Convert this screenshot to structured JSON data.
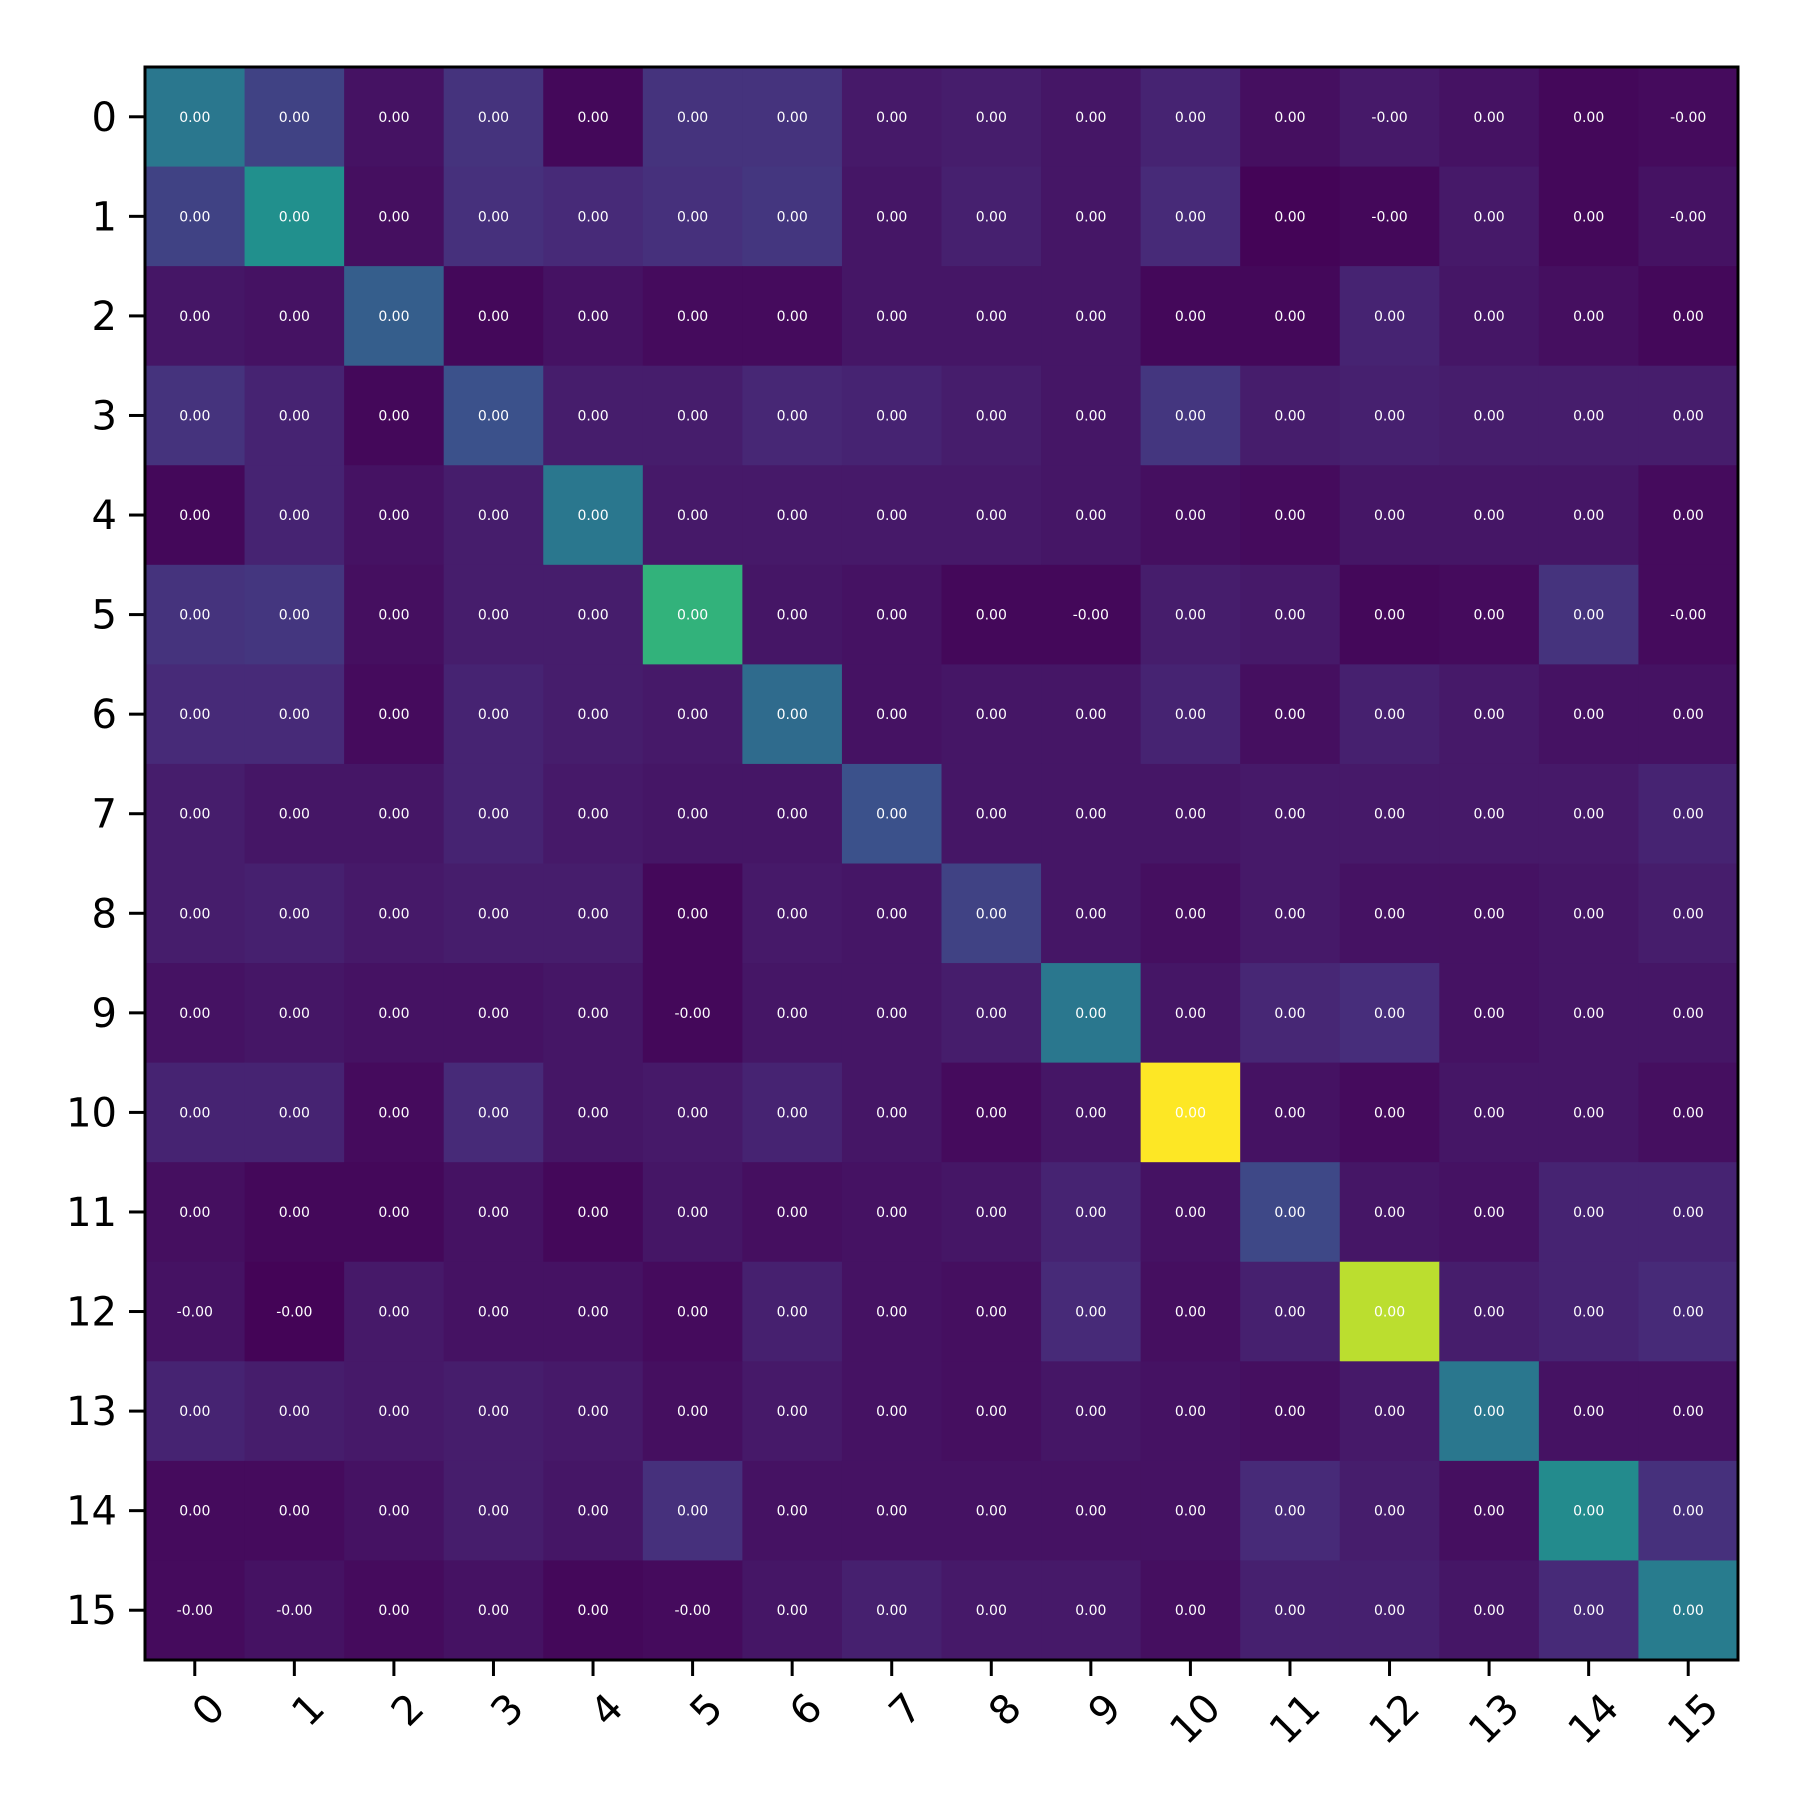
{
  "chart_data": {
    "type": "heatmap",
    "title": "",
    "xlabel": "",
    "ylabel": "",
    "x_tick_labels": [
      "0",
      "1",
      "2",
      "3",
      "4",
      "5",
      "6",
      "7",
      "8",
      "9",
      "10",
      "11",
      "12",
      "13",
      "14",
      "15"
    ],
    "y_tick_labels": [
      "0",
      "1",
      "2",
      "3",
      "4",
      "5",
      "6",
      "7",
      "8",
      "9",
      "10",
      "11",
      "12",
      "13",
      "14",
      "15"
    ],
    "colormap": "viridis",
    "color_scale": [
      0.0,
      1.0
    ],
    "cell_intensities": [
      [
        0.4,
        0.2,
        0.05,
        0.15,
        0.02,
        0.15,
        0.15,
        0.07,
        0.08,
        0.06,
        0.1,
        0.04,
        0.07,
        0.05,
        0.02,
        0.03
      ],
      [
        0.2,
        0.5,
        0.04,
        0.14,
        0.12,
        0.14,
        0.16,
        0.06,
        0.09,
        0.06,
        0.12,
        0.01,
        0.02,
        0.07,
        0.02,
        0.05
      ],
      [
        0.06,
        0.05,
        0.3,
        0.02,
        0.05,
        0.03,
        0.03,
        0.06,
        0.06,
        0.06,
        0.02,
        0.02,
        0.1,
        0.06,
        0.04,
        0.02
      ],
      [
        0.15,
        0.1,
        0.02,
        0.25,
        0.08,
        0.08,
        0.11,
        0.1,
        0.08,
        0.06,
        0.16,
        0.08,
        0.09,
        0.08,
        0.08,
        0.08
      ],
      [
        0.02,
        0.1,
        0.05,
        0.08,
        0.4,
        0.07,
        0.07,
        0.07,
        0.07,
        0.06,
        0.04,
        0.03,
        0.06,
        0.06,
        0.06,
        0.03
      ],
      [
        0.15,
        0.16,
        0.04,
        0.08,
        0.08,
        0.65,
        0.06,
        0.05,
        0.02,
        0.02,
        0.08,
        0.07,
        0.02,
        0.03,
        0.15,
        0.03
      ],
      [
        0.12,
        0.12,
        0.03,
        0.1,
        0.08,
        0.07,
        0.35,
        0.05,
        0.06,
        0.06,
        0.1,
        0.04,
        0.09,
        0.07,
        0.05,
        0.05
      ],
      [
        0.08,
        0.06,
        0.06,
        0.1,
        0.07,
        0.06,
        0.06,
        0.25,
        0.06,
        0.06,
        0.06,
        0.07,
        0.07,
        0.07,
        0.07,
        0.1
      ],
      [
        0.08,
        0.09,
        0.07,
        0.08,
        0.08,
        0.02,
        0.07,
        0.06,
        0.2,
        0.06,
        0.04,
        0.07,
        0.05,
        0.05,
        0.06,
        0.08
      ],
      [
        0.05,
        0.06,
        0.05,
        0.05,
        0.06,
        0.02,
        0.06,
        0.06,
        0.08,
        0.4,
        0.06,
        0.11,
        0.13,
        0.05,
        0.06,
        0.06
      ],
      [
        0.1,
        0.1,
        0.03,
        0.12,
        0.06,
        0.07,
        0.1,
        0.06,
        0.03,
        0.06,
        1.0,
        0.05,
        0.03,
        0.06,
        0.06,
        0.04
      ],
      [
        0.04,
        0.02,
        0.02,
        0.05,
        0.02,
        0.06,
        0.04,
        0.05,
        0.06,
        0.1,
        0.05,
        0.22,
        0.06,
        0.05,
        0.1,
        0.1
      ],
      [
        0.05,
        0.01,
        0.07,
        0.05,
        0.05,
        0.03,
        0.09,
        0.05,
        0.04,
        0.12,
        0.04,
        0.09,
        0.9,
        0.08,
        0.1,
        0.12
      ],
      [
        0.1,
        0.08,
        0.07,
        0.08,
        0.07,
        0.04,
        0.07,
        0.05,
        0.04,
        0.06,
        0.05,
        0.04,
        0.07,
        0.4,
        0.05,
        0.05
      ],
      [
        0.03,
        0.03,
        0.05,
        0.08,
        0.06,
        0.14,
        0.05,
        0.05,
        0.05,
        0.05,
        0.05,
        0.12,
        0.08,
        0.04,
        0.48,
        0.14
      ],
      [
        0.03,
        0.05,
        0.03,
        0.05,
        0.02,
        0.03,
        0.06,
        0.09,
        0.07,
        0.07,
        0.04,
        0.09,
        0.09,
        0.06,
        0.12,
        0.42
      ]
    ],
    "cell_labels": [
      [
        "0.00",
        "0.00",
        "0.00",
        "0.00",
        "0.00",
        "0.00",
        "0.00",
        "0.00",
        "0.00",
        "0.00",
        "0.00",
        "0.00",
        "-0.00",
        "0.00",
        "0.00",
        "-0.00"
      ],
      [
        "0.00",
        "0.00",
        "0.00",
        "0.00",
        "0.00",
        "0.00",
        "0.00",
        "0.00",
        "0.00",
        "0.00",
        "0.00",
        "0.00",
        "-0.00",
        "0.00",
        "0.00",
        "-0.00"
      ],
      [
        "0.00",
        "0.00",
        "0.00",
        "0.00",
        "0.00",
        "0.00",
        "0.00",
        "0.00",
        "0.00",
        "0.00",
        "0.00",
        "0.00",
        "0.00",
        "0.00",
        "0.00",
        "0.00"
      ],
      [
        "0.00",
        "0.00",
        "0.00",
        "0.00",
        "0.00",
        "0.00",
        "0.00",
        "0.00",
        "0.00",
        "0.00",
        "0.00",
        "0.00",
        "0.00",
        "0.00",
        "0.00",
        "0.00"
      ],
      [
        "0.00",
        "0.00",
        "0.00",
        "0.00",
        "0.00",
        "0.00",
        "0.00",
        "0.00",
        "0.00",
        "0.00",
        "0.00",
        "0.00",
        "0.00",
        "0.00",
        "0.00",
        "0.00"
      ],
      [
        "0.00",
        "0.00",
        "0.00",
        "0.00",
        "0.00",
        "0.00",
        "0.00",
        "0.00",
        "0.00",
        "-0.00",
        "0.00",
        "0.00",
        "0.00",
        "0.00",
        "0.00",
        "-0.00"
      ],
      [
        "0.00",
        "0.00",
        "0.00",
        "0.00",
        "0.00",
        "0.00",
        "0.00",
        "0.00",
        "0.00",
        "0.00",
        "0.00",
        "0.00",
        "0.00",
        "0.00",
        "0.00",
        "0.00"
      ],
      [
        "0.00",
        "0.00",
        "0.00",
        "0.00",
        "0.00",
        "0.00",
        "0.00",
        "0.00",
        "0.00",
        "0.00",
        "0.00",
        "0.00",
        "0.00",
        "0.00",
        "0.00",
        "0.00"
      ],
      [
        "0.00",
        "0.00",
        "0.00",
        "0.00",
        "0.00",
        "0.00",
        "0.00",
        "0.00",
        "0.00",
        "0.00",
        "0.00",
        "0.00",
        "0.00",
        "0.00",
        "0.00",
        "0.00"
      ],
      [
        "0.00",
        "0.00",
        "0.00",
        "0.00",
        "0.00",
        "-0.00",
        "0.00",
        "0.00",
        "0.00",
        "0.00",
        "0.00",
        "0.00",
        "0.00",
        "0.00",
        "0.00",
        "0.00"
      ],
      [
        "0.00",
        "0.00",
        "0.00",
        "0.00",
        "0.00",
        "0.00",
        "0.00",
        "0.00",
        "0.00",
        "0.00",
        "0.00",
        "0.00",
        "0.00",
        "0.00",
        "0.00",
        "0.00"
      ],
      [
        "0.00",
        "0.00",
        "0.00",
        "0.00",
        "0.00",
        "0.00",
        "0.00",
        "0.00",
        "0.00",
        "0.00",
        "0.00",
        "0.00",
        "0.00",
        "0.00",
        "0.00",
        "0.00"
      ],
      [
        "-0.00",
        "-0.00",
        "0.00",
        "0.00",
        "0.00",
        "0.00",
        "0.00",
        "0.00",
        "0.00",
        "0.00",
        "0.00",
        "0.00",
        "0.00",
        "0.00",
        "0.00",
        "0.00"
      ],
      [
        "0.00",
        "0.00",
        "0.00",
        "0.00",
        "0.00",
        "0.00",
        "0.00",
        "0.00",
        "0.00",
        "0.00",
        "0.00",
        "0.00",
        "0.00",
        "0.00",
        "0.00",
        "0.00"
      ],
      [
        "0.00",
        "0.00",
        "0.00",
        "0.00",
        "0.00",
        "0.00",
        "0.00",
        "0.00",
        "0.00",
        "0.00",
        "0.00",
        "0.00",
        "0.00",
        "0.00",
        "0.00",
        "0.00"
      ],
      [
        "-0.00",
        "-0.00",
        "0.00",
        "0.00",
        "0.00",
        "-0.00",
        "0.00",
        "0.00",
        "0.00",
        "0.00",
        "0.00",
        "0.00",
        "0.00",
        "0.00",
        "0.00",
        "0.00"
      ]
    ],
    "grid": false,
    "legend": "none"
  }
}
